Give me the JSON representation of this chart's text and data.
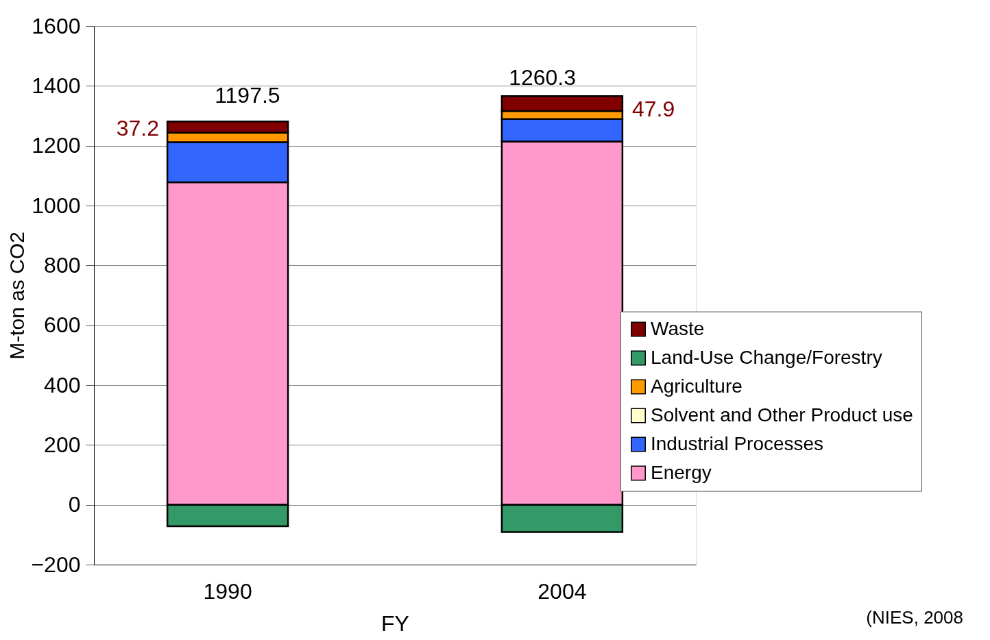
{
  "chart_data": {
    "type": "bar",
    "stacked": true,
    "xlabel": "FY",
    "ylabel": "M-ton as CO2",
    "categories": [
      "1990",
      "2004"
    ],
    "series": [
      {
        "name": "Energy",
        "color": "#ff99cc",
        "values": [
          1078,
          1214
        ]
      },
      {
        "name": "Industrial Processes",
        "color": "#3366ff",
        "values": [
          134,
          75
        ]
      },
      {
        "name": "Solvent and Other Product use",
        "color": "#ffffcc",
        "values": [
          null,
          null
        ]
      },
      {
        "name": "Agriculture",
        "color": "#ff9900",
        "values": [
          32,
          27
        ]
      },
      {
        "name": "Land-Use Change/Forestry",
        "color": "#339966",
        "values": [
          -72,
          -91
        ]
      },
      {
        "name": "Waste",
        "color": "#800000",
        "values": [
          37,
          50
        ]
      }
    ],
    "ylim": [
      -200,
      1600
    ],
    "yticks": [
      -200,
      0,
      200,
      400,
      600,
      800,
      1000,
      1200,
      1400,
      1600
    ],
    "grid": "y",
    "legend": "right",
    "annotations": [
      "1197.5",
      "1260.3",
      "37.2",
      "47.9",
      "(NIES, 2008"
    ]
  }
}
